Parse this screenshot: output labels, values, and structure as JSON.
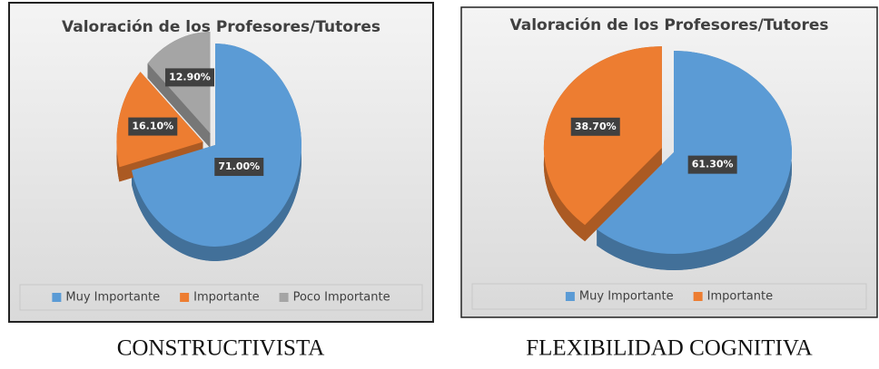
{
  "chart_data": [
    {
      "type": "pie",
      "title": "Valoración de los Profesores/Tutores",
      "categories": [
        "Muy Importante",
        "Importante",
        "Poco Importante"
      ],
      "values": [
        71.0,
        16.1,
        12.9
      ],
      "value_labels": [
        "71.00%",
        "16.10%",
        "12.90%"
      ],
      "colors": [
        "#5b9bd5",
        "#ed7d31",
        "#a5a5a5"
      ],
      "legend": "bottom",
      "caption": "CONSTRUCTIVISTA"
    },
    {
      "type": "pie",
      "title": "Valoración de los Profesores/Tutores",
      "categories": [
        "Muy Importante",
        "Importante"
      ],
      "values": [
        61.3,
        38.7
      ],
      "value_labels": [
        "61.30%",
        "38.70%"
      ],
      "colors": [
        "#5b9bd5",
        "#ed7d31"
      ],
      "legend": "bottom",
      "caption": "FLEXIBILIDAD COGNITIVA"
    }
  ]
}
